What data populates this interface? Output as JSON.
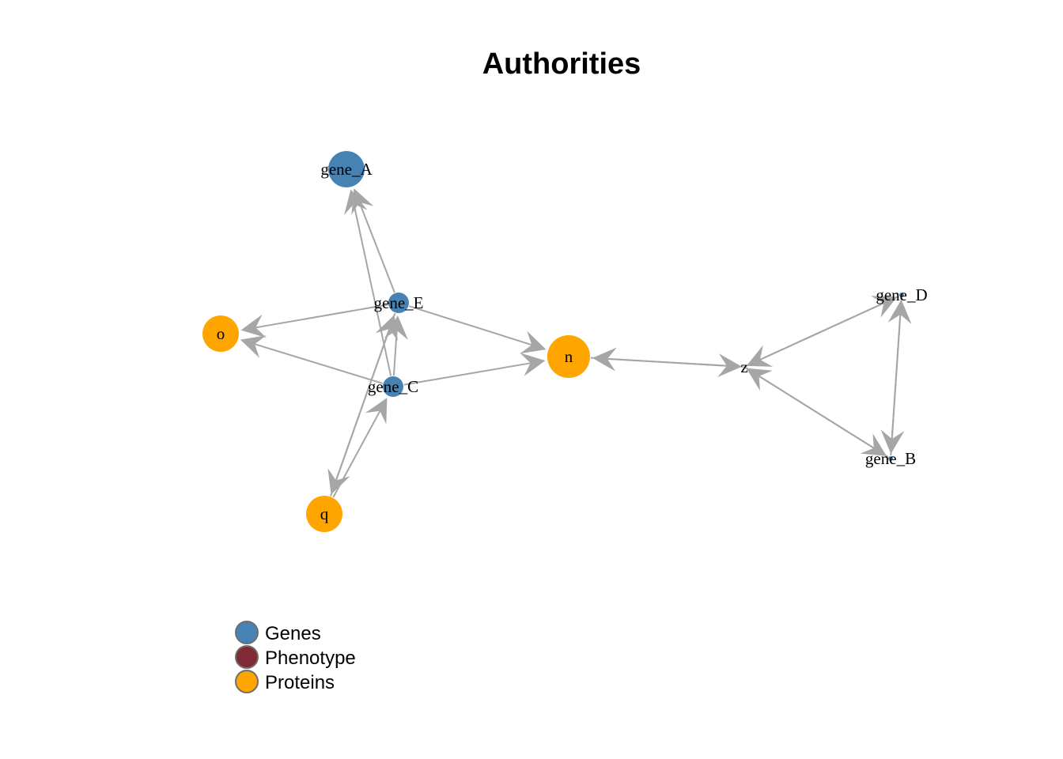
{
  "title": "Authorities",
  "colors": {
    "genes": "#4682B4",
    "phenotype": "#7F2A35",
    "proteins": "#FFA500",
    "edge": "#A6A6A6",
    "legend_stroke": "#6E6E6E"
  },
  "nodes": [
    {
      "id": "gene_A",
      "label": "gene_A",
      "group": "genes"
    },
    {
      "id": "gene_E",
      "label": "gene_E",
      "group": "genes"
    },
    {
      "id": "gene_C",
      "label": "gene_C",
      "group": "genes"
    },
    {
      "id": "o",
      "label": "o",
      "group": "proteins"
    },
    {
      "id": "n",
      "label": "n",
      "group": "proteins"
    },
    {
      "id": "q",
      "label": "q",
      "group": "proteins"
    },
    {
      "id": "z",
      "label": "z",
      "group": "phenotype"
    },
    {
      "id": "gene_D",
      "label": "gene_D",
      "group": "genes"
    },
    {
      "id": "gene_B",
      "label": "gene_B",
      "group": "genes"
    }
  ],
  "edges": [
    {
      "from": "gene_E",
      "to": "gene_A"
    },
    {
      "from": "gene_C",
      "to": "gene_A"
    },
    {
      "from": "gene_E",
      "to": "o"
    },
    {
      "from": "gene_C",
      "to": "o"
    },
    {
      "from": "gene_E",
      "to": "n"
    },
    {
      "from": "gene_C",
      "to": "n"
    },
    {
      "from": "gene_E",
      "to": "q"
    },
    {
      "from": "q",
      "to": "gene_C"
    },
    {
      "from": "q",
      "to": "gene_E"
    },
    {
      "from": "gene_C",
      "to": "gene_E"
    },
    {
      "from": "z",
      "to": "n"
    },
    {
      "from": "n",
      "to": "z"
    },
    {
      "from": "gene_D",
      "to": "z"
    },
    {
      "from": "z",
      "to": "gene_D"
    },
    {
      "from": "gene_B",
      "to": "z"
    },
    {
      "from": "z",
      "to": "gene_B"
    },
    {
      "from": "gene_D",
      "to": "gene_B"
    },
    {
      "from": "gene_B",
      "to": "gene_D"
    }
  ],
  "legend": [
    {
      "label": "Genes",
      "group": "genes"
    },
    {
      "label": "Phenotype",
      "group": "phenotype"
    },
    {
      "label": "Proteins",
      "group": "proteins"
    }
  ]
}
